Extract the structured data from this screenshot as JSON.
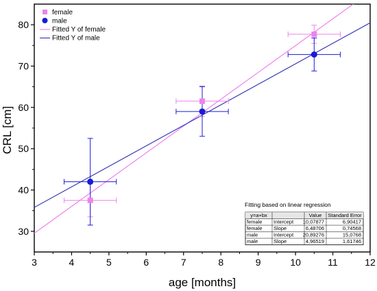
{
  "chart_data": {
    "type": "scatter",
    "xlabel": "age [months]",
    "ylabel": "CRL [cm]",
    "xlim": [
      3,
      12
    ],
    "ylim": [
      25,
      85
    ],
    "xticks": [
      3,
      4,
      5,
      6,
      7,
      8,
      9,
      10,
      11,
      12
    ],
    "yticks": [
      30,
      40,
      50,
      60,
      70,
      80
    ],
    "legend_position": "top-left",
    "series": [
      {
        "name": "female",
        "color": "#ee82ee",
        "marker": "square",
        "points": [
          {
            "x": 4.5,
            "y": 37.5,
            "xerr": 0.7,
            "yerr": 4.0
          },
          {
            "x": 7.5,
            "y": 61.5,
            "xerr": 0.7,
            "yerr": 3.7
          },
          {
            "x": 10.5,
            "y": 77.7,
            "xerr": 0.7,
            "yerr": 2.2
          }
        ]
      },
      {
        "name": "male",
        "color": "#1a1ad6",
        "marker": "circle",
        "points": [
          {
            "x": 4.5,
            "y": 42.0,
            "xerr": 0.7,
            "yerr": 10.5
          },
          {
            "x": 7.5,
            "y": 59.0,
            "xerr": 0.7,
            "yerr": 6.0
          },
          {
            "x": 10.5,
            "y": 72.8,
            "xerr": 0.7,
            "yerr": 4.0
          }
        ]
      }
    ],
    "fits": [
      {
        "name": "Fitted Y of female",
        "color": "#ee82ee",
        "intercept": 10.07877,
        "slope": 6.48706
      },
      {
        "name": "Fitted Y of male",
        "color": "#3a3ab8",
        "intercept": 20.89276,
        "slope": 4.96519
      }
    ],
    "table": {
      "title": "Fitting based on linear regression",
      "headers": [
        "y=a+bx",
        "",
        "Value",
        "Standard Error"
      ],
      "rows": [
        [
          "female",
          "Intercept",
          "10,07877",
          "6,90417"
        ],
        [
          "female",
          "Slope",
          "6,48706",
          "0,74568"
        ],
        [
          "male",
          "Intercept",
          "20,89276",
          "15,0768"
        ],
        [
          "male",
          "Slope",
          "4,96519",
          "1,61746"
        ]
      ]
    }
  }
}
